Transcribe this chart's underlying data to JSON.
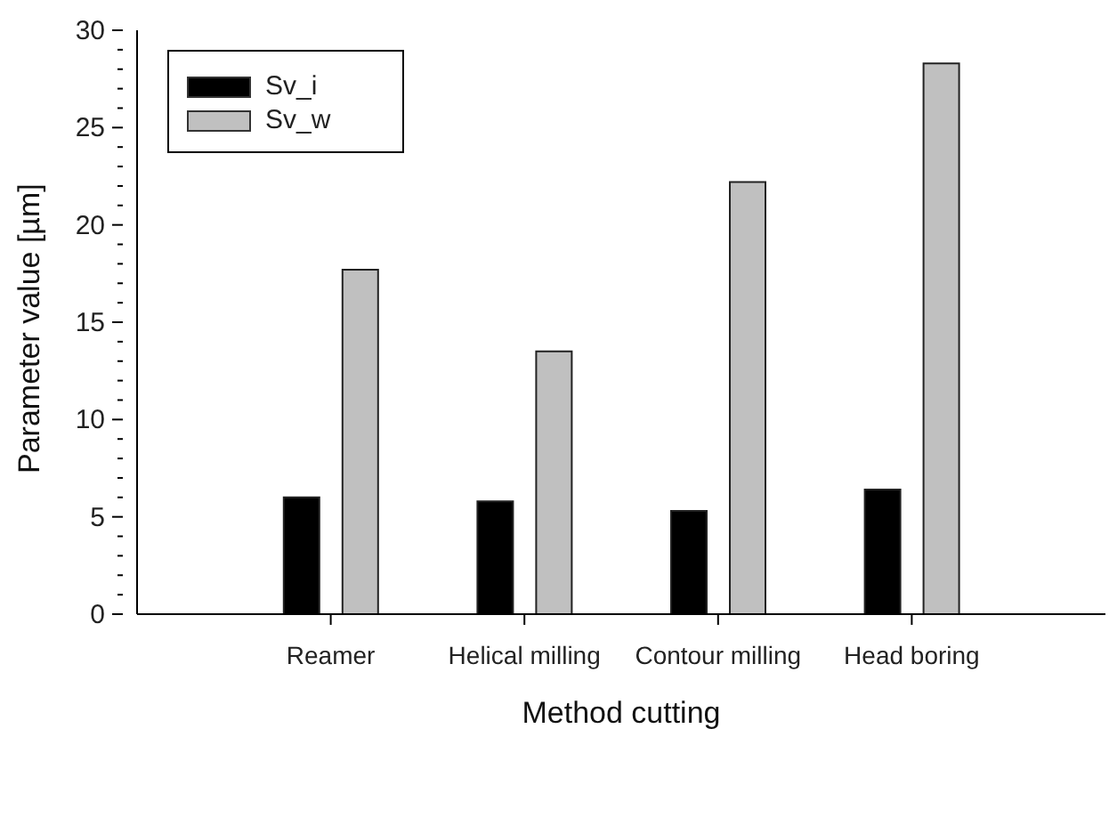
{
  "chart_data": {
    "type": "bar",
    "xlabel": "Method cutting",
    "ylabel": "Parameter value [µm]",
    "categories": [
      "Reamer",
      "Helical milling",
      "Contour milling",
      "Head boring"
    ],
    "series": [
      {
        "name": "Sv_i",
        "color": "#000000",
        "values": [
          6.0,
          5.8,
          5.3,
          6.4
        ]
      },
      {
        "name": "Sv_w",
        "color": "#c0c0c0",
        "values": [
          17.7,
          13.5,
          22.2,
          28.3
        ]
      }
    ],
    "ylim": [
      0,
      30
    ],
    "yticks": [
      0,
      {
        "value": 1,
        "label": null
      },
      {
        "value": 2,
        "label": null
      },
      {
        "value": 3,
        "label": null
      },
      {
        "value": 4,
        "label": null
      },
      5,
      {
        "value": 6,
        "label": null
      },
      {
        "value": 7,
        "label": null
      },
      {
        "value": 8,
        "label": null
      },
      {
        "value": 9,
        "label": null
      },
      10,
      {
        "value": 11,
        "label": null
      },
      {
        "value": 12,
        "label": null
      },
      {
        "value": 13,
        "label": null
      },
      {
        "value": 14,
        "label": null
      },
      15,
      {
        "value": 16,
        "label": null
      },
      {
        "value": 17,
        "label": null
      },
      {
        "value": 18,
        "label": null
      },
      {
        "value": 19,
        "label": null
      },
      20,
      {
        "value": 21,
        "label": null
      },
      {
        "value": 22,
        "label": null
      },
      {
        "value": 23,
        "label": null
      },
      {
        "value": 24,
        "label": null
      },
      25,
      {
        "value": 26,
        "label": null
      },
      {
        "value": 27,
        "label": null
      },
      {
        "value": 28,
        "label": null
      },
      {
        "value": 29,
        "label": null
      },
      30
    ],
    "grid": false,
    "legend": "top left"
  }
}
